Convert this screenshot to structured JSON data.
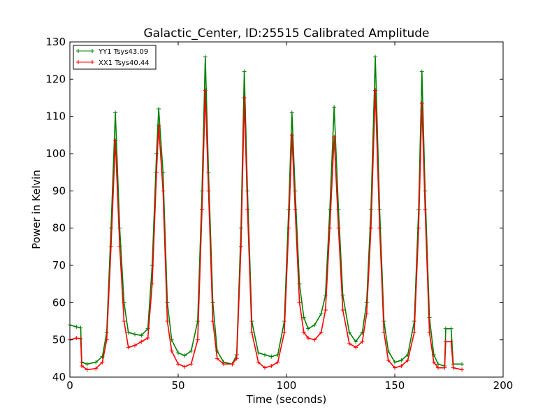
{
  "chart_data": {
    "type": "line",
    "title": "Galactic_Center, ID:25515 Calibrated Amplitude",
    "xlabel": "Time (seconds)",
    "ylabel": "Power in Kelvin",
    "xlim": [
      0,
      200
    ],
    "ylim": [
      40,
      130
    ],
    "xticks": [
      0,
      50,
      100,
      150,
      200
    ],
    "yticks": [
      40,
      50,
      60,
      70,
      80,
      90,
      100,
      110,
      120,
      130
    ],
    "grid": false,
    "legend_position": "top-left",
    "marker": "+",
    "series": [
      {
        "name": "YY1 Tsys43.09",
        "color": "#008000",
        "points": [
          [
            0,
            54
          ],
          [
            3,
            53.5
          ],
          [
            5,
            53.2
          ],
          [
            5.5,
            44
          ],
          [
            8,
            43.5
          ],
          [
            12,
            44
          ],
          [
            15,
            45.5
          ],
          [
            17,
            52
          ],
          [
            19,
            80
          ],
          [
            21,
            111
          ],
          [
            23,
            80
          ],
          [
            25,
            60
          ],
          [
            27,
            52
          ],
          [
            30,
            51.5
          ],
          [
            33,
            51.2
          ],
          [
            36,
            53
          ],
          [
            38,
            70
          ],
          [
            40,
            100
          ],
          [
            41,
            112
          ],
          [
            43,
            95
          ],
          [
            45,
            60
          ],
          [
            47,
            50
          ],
          [
            50,
            46.5
          ],
          [
            53,
            45.8
          ],
          [
            56,
            47
          ],
          [
            59,
            55
          ],
          [
            61,
            90
          ],
          [
            62.5,
            126
          ],
          [
            64,
            95
          ],
          [
            66,
            60
          ],
          [
            68,
            47
          ],
          [
            71,
            44
          ],
          [
            75,
            43.5
          ],
          [
            77,
            46
          ],
          [
            79,
            80
          ],
          [
            80.5,
            122
          ],
          [
            82,
            90
          ],
          [
            84,
            55
          ],
          [
            87,
            46.5
          ],
          [
            90,
            46
          ],
          [
            93,
            45.5
          ],
          [
            96,
            46
          ],
          [
            99,
            55
          ],
          [
            101,
            85
          ],
          [
            102.5,
            111
          ],
          [
            104,
            90
          ],
          [
            106,
            65
          ],
          [
            108,
            56
          ],
          [
            110,
            53
          ],
          [
            113,
            54
          ],
          [
            116,
            57
          ],
          [
            118,
            62
          ],
          [
            120,
            85
          ],
          [
            122,
            112.5
          ],
          [
            124,
            85
          ],
          [
            126,
            62
          ],
          [
            129,
            52
          ],
          [
            132,
            49.5
          ],
          [
            135,
            52
          ],
          [
            137,
            60
          ],
          [
            139,
            85
          ],
          [
            141,
            126
          ],
          [
            143,
            85
          ],
          [
            145,
            55
          ],
          [
            147,
            47
          ],
          [
            150,
            44
          ],
          [
            153,
            44.5
          ],
          [
            156,
            46
          ],
          [
            159,
            55
          ],
          [
            161,
            85
          ],
          [
            162.5,
            122
          ],
          [
            164,
            90
          ],
          [
            166,
            56
          ],
          [
            168,
            46
          ],
          [
            170,
            43.5
          ],
          [
            173,
            43
          ],
          [
            173.5,
            53
          ],
          [
            176,
            53
          ],
          [
            177,
            43.5
          ],
          [
            181,
            43.5
          ]
        ]
      },
      {
        "name": "XX1 Tsys40.44",
        "color": "#ff0000",
        "points": [
          [
            0,
            50
          ],
          [
            3,
            50.5
          ],
          [
            5,
            50.3
          ],
          [
            5.5,
            43
          ],
          [
            8,
            42
          ],
          [
            12,
            42.3
          ],
          [
            15,
            44
          ],
          [
            17,
            50
          ],
          [
            19,
            75
          ],
          [
            21,
            103.5
          ],
          [
            23,
            75
          ],
          [
            25,
            55
          ],
          [
            27,
            48
          ],
          [
            30,
            48.5
          ],
          [
            33,
            49.5
          ],
          [
            36,
            50.5
          ],
          [
            38,
            65
          ],
          [
            40,
            95
          ],
          [
            41,
            107.5
          ],
          [
            43,
            90
          ],
          [
            45,
            55
          ],
          [
            47,
            47
          ],
          [
            50,
            43.5
          ],
          [
            53,
            42.8
          ],
          [
            56,
            43.5
          ],
          [
            59,
            50
          ],
          [
            61,
            85
          ],
          [
            62.5,
            117
          ],
          [
            64,
            90
          ],
          [
            66,
            55
          ],
          [
            68,
            45
          ],
          [
            71,
            43.5
          ],
          [
            75,
            43.5
          ],
          [
            77,
            45
          ],
          [
            79,
            75
          ],
          [
            80.5,
            115
          ],
          [
            82,
            85
          ],
          [
            84,
            52
          ],
          [
            87,
            44
          ],
          [
            90,
            42.5
          ],
          [
            93,
            43
          ],
          [
            96,
            44
          ],
          [
            99,
            52
          ],
          [
            101,
            80
          ],
          [
            102.5,
            105
          ],
          [
            104,
            85
          ],
          [
            106,
            60
          ],
          [
            108,
            52
          ],
          [
            110,
            50.5
          ],
          [
            113,
            50
          ],
          [
            116,
            52
          ],
          [
            118,
            58
          ],
          [
            120,
            80
          ],
          [
            122,
            104.5
          ],
          [
            124,
            80
          ],
          [
            126,
            58
          ],
          [
            129,
            49
          ],
          [
            132,
            48
          ],
          [
            135,
            49.5
          ],
          [
            137,
            57
          ],
          [
            139,
            80
          ],
          [
            141,
            117
          ],
          [
            143,
            80
          ],
          [
            145,
            52
          ],
          [
            147,
            44.5
          ],
          [
            150,
            42.5
          ],
          [
            153,
            43
          ],
          [
            156,
            44.5
          ],
          [
            159,
            52
          ],
          [
            161,
            80
          ],
          [
            162.5,
            113.5
          ],
          [
            164,
            85
          ],
          [
            166,
            52
          ],
          [
            168,
            44
          ],
          [
            170,
            42.5
          ],
          [
            173,
            42.5
          ],
          [
            173.5,
            49.5
          ],
          [
            176,
            49.5
          ],
          [
            177,
            42.5
          ],
          [
            181,
            42
          ]
        ]
      }
    ]
  }
}
